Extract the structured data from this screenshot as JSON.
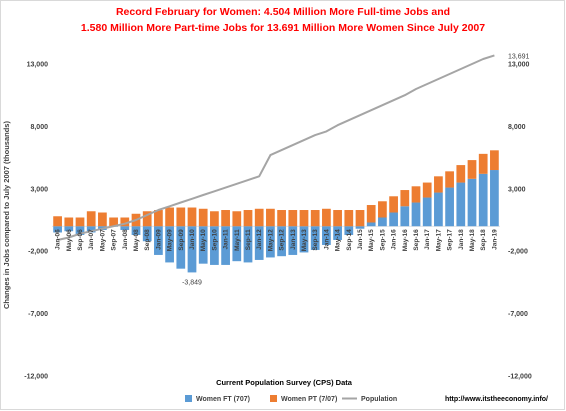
{
  "chart_data": {
    "type": "bar",
    "title_line1": "Record February for Women:  4.504 Million More Full-time  Jobs  and",
    "title_line2": "1.580 Million More Part-time Jobs for 13.691 Million More Women Since July 2007",
    "xlabel": "Current Population Survey (CPS) Data",
    "ylabel": "Changes in Jobs compared to July 2007 (thousands)",
    "ylim": [
      -12000,
      13000
    ],
    "yticks": [
      13000,
      8000,
      3000,
      -2000,
      -7000,
      -12000
    ],
    "ytick_labels": [
      "13,000",
      "8,000",
      "3,000",
      "-2,000",
      "-7,000",
      "-12,000"
    ],
    "categories": [
      "Jan-06",
      "May-06",
      "Sep-06",
      "Jan-07",
      "May-07",
      "Sep-07",
      "Jan-08",
      "May-08",
      "Sep-08",
      "Jan-09",
      "May-09",
      "Sep-09",
      "Jan-10",
      "May-10",
      "Sep-10",
      "Jan-11",
      "May-11",
      "Sep-11",
      "Jan-12",
      "May-12",
      "Sep-12",
      "Jan-13",
      "May-13",
      "Sep-13",
      "Jan-14",
      "May-14",
      "Sep-14",
      "Jan-15",
      "May-15",
      "Sep-15",
      "Jan-16",
      "May-16",
      "Sep-16",
      "Jan-17",
      "May-17",
      "Sep-17",
      "Jan-18",
      "May-18",
      "Sep-18",
      "Jan-19"
    ],
    "series": [
      {
        "name": "Women FT (707)",
        "color": "#5b9bd5",
        "type": "bar",
        "values": [
          -500,
          -400,
          -700,
          -500,
          -300,
          0,
          -300,
          -700,
          -1200,
          -2300,
          -2900,
          -3400,
          -3700,
          -3000,
          -3100,
          -3100,
          -2800,
          -2900,
          -2700,
          -2500,
          -2400,
          -2300,
          -2100,
          -1900,
          -1500,
          -1100,
          -700,
          -200,
          300,
          700,
          1100,
          1600,
          1900,
          2300,
          2700,
          3100,
          3500,
          3800,
          4200,
          4504
        ]
      },
      {
        "name": "Women PT (7/07)",
        "color": "#ed7d31",
        "type": "bar",
        "values": [
          800,
          700,
          700,
          1200,
          1100,
          700,
          700,
          1000,
          1200,
          1300,
          1500,
          1500,
          1500,
          1400,
          1200,
          1300,
          1200,
          1300,
          1400,
          1400,
          1300,
          1300,
          1300,
          1300,
          1400,
          1300,
          1300,
          1300,
          1400,
          1300,
          1300,
          1300,
          1300,
          1200,
          1300,
          1300,
          1400,
          1500,
          1600,
          1580
        ]
      },
      {
        "name": "Population",
        "color": "#a5a5a5",
        "type": "line",
        "values": [
          -1100,
          -900,
          -600,
          -400,
          -200,
          0,
          200,
          500,
          900,
          1300,
          1600,
          1900,
          2200,
          2500,
          2800,
          3100,
          3400,
          3700,
          4000,
          5700,
          6100,
          6500,
          6900,
          7300,
          7600,
          8100,
          8500,
          8900,
          9300,
          9700,
          10100,
          10500,
          11000,
          11400,
          11800,
          12200,
          12600,
          13000,
          13400,
          13691
        ]
      }
    ],
    "annotations": [
      {
        "text": "-3,849",
        "x": "Jan-10",
        "y": -3849
      },
      {
        "text": "13,691",
        "x": "Jan-19",
        "y": 13691
      }
    ],
    "legend_placement": "bottom",
    "grid": false
  },
  "legend": {
    "ft": "Women FT (707)",
    "pt": "Women PT (7/07)",
    "pop": "Population"
  },
  "source_url": "http://www.itstheeconomy.info/"
}
